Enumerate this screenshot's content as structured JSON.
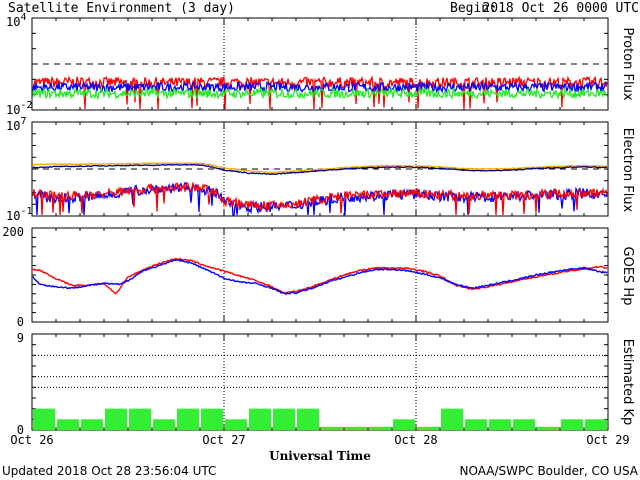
{
  "header": {
    "title": "Satellite Environment (3 day)",
    "begin_label": "Begin:",
    "begin_value": "2018 Oct 26 0000 UTC"
  },
  "footer": {
    "updated": "Updated 2018 Oct 28 23:56:04 UTC",
    "credit": "NOAA/SWPC Boulder, CO USA"
  },
  "colors": {
    "red": "#ff0000",
    "blue": "#0000ff",
    "green": "#22ee22",
    "orange": "#ffa500",
    "navy": "#000080",
    "kp_bar": "#33ee33"
  },
  "chart_data": [
    {
      "type": "line",
      "panel": "proton",
      "ylabel": "Proton Flux",
      "yscale": "log",
      "ylim": [
        0.01,
        10000
      ],
      "yticks": [
        {
          "value": 10000,
          "base": "10",
          "exp": "4"
        },
        {
          "value": 0.01,
          "base": "10",
          "exp": "-2"
        }
      ],
      "threshold": 10,
      "xlim": [
        0,
        72
      ],
      "xticks": [
        0,
        24,
        48,
        72
      ],
      "series": [
        {
          "color": "red",
          "x": [
            0,
            6,
            12,
            18,
            24,
            30,
            36,
            42,
            48,
            54,
            60,
            66,
            72
          ],
          "y": [
            0.6,
            0.65,
            0.6,
            0.6,
            0.65,
            0.6,
            0.62,
            0.6,
            0.62,
            0.6,
            0.65,
            0.6,
            0.62
          ],
          "noise": 0.35
        },
        {
          "color": "blue",
          "x": [
            0,
            12,
            24,
            36,
            48,
            60,
            72
          ],
          "y": [
            0.3,
            0.3,
            0.32,
            0.3,
            0.3,
            0.3,
            0.32
          ],
          "noise": 0.3
        },
        {
          "color": "green",
          "x": [
            0,
            12,
            24,
            36,
            48,
            60,
            72
          ],
          "y": [
            0.12,
            0.12,
            0.12,
            0.12,
            0.12,
            0.12,
            0.12
          ],
          "noise": 0.3
        }
      ]
    },
    {
      "type": "line",
      "panel": "electron",
      "ylabel": "Electron Flux",
      "yscale": "log",
      "ylim": [
        0.1,
        10000000
      ],
      "yticks": [
        {
          "value": 10000000,
          "base": "10",
          "exp": "7"
        },
        {
          "value": 0.1,
          "base": "10",
          "exp": "-1"
        }
      ],
      "threshold": 1000,
      "xlim": [
        0,
        72
      ],
      "xticks": [
        0,
        24,
        48,
        72
      ],
      "series": [
        {
          "color": "orange",
          "x": [
            0,
            3,
            6,
            9,
            12,
            15,
            18,
            21,
            24,
            27,
            30,
            33,
            36,
            39,
            42,
            45,
            48,
            51,
            54,
            57,
            60,
            63,
            66,
            69,
            72
          ],
          "y": [
            2300,
            2600,
            2500,
            2700,
            2800,
            3000,
            3100,
            3100,
            1200,
            700,
            500,
            700,
            900,
            1300,
            1700,
            1900,
            1800,
            1500,
            1100,
            1000,
            1100,
            1400,
            1700,
            1900,
            1600
          ],
          "noise": 0.04
        },
        {
          "color": "navy",
          "x": [
            0,
            3,
            6,
            9,
            12,
            15,
            18,
            21,
            24,
            27,
            30,
            33,
            36,
            39,
            42,
            45,
            48,
            51,
            54,
            57,
            60,
            63,
            66,
            69,
            72
          ],
          "y": [
            1300,
            1600,
            1700,
            1900,
            2000,
            2100,
            2300,
            2200,
            800,
            450,
            350,
            500,
            700,
            1000,
            1300,
            1500,
            1400,
            1100,
            800,
            700,
            800,
            1100,
            1300,
            1500,
            1300
          ],
          "noise": 0.04
        },
        {
          "color": "blue",
          "x": [
            0,
            3,
            6,
            9,
            12,
            15,
            18,
            21,
            24,
            27,
            30,
            33,
            36,
            39,
            42,
            45,
            48,
            51,
            54,
            57,
            60,
            63,
            66,
            69,
            72
          ],
          "y": [
            6,
            3,
            4,
            5,
            12,
            20,
            25,
            22,
            1.5,
            0.6,
            0.6,
            0.8,
            2,
            4,
            5,
            7,
            7,
            5,
            4,
            4,
            5,
            6,
            7,
            8,
            7
          ],
          "noise": 0.45
        },
        {
          "color": "red",
          "x": [
            0,
            3,
            6,
            9,
            12,
            15,
            18,
            21,
            24,
            27,
            30,
            33,
            36,
            39,
            42,
            45,
            48,
            51,
            54,
            57,
            60,
            63,
            66,
            69,
            72
          ],
          "y": [
            8,
            5,
            6,
            7,
            14,
            22,
            28,
            25,
            2,
            0.8,
            0.7,
            1,
            2.5,
            5,
            6,
            8,
            8,
            6,
            5,
            5,
            6,
            7,
            8,
            9,
            8
          ],
          "noise": 0.4
        }
      ]
    },
    {
      "type": "line",
      "panel": "goes_hp",
      "ylabel": "GOES Hp",
      "yscale": "linear",
      "ylim": [
        0,
        200
      ],
      "yticks": [
        {
          "value": 200,
          "label": "200"
        },
        {
          "value": 0,
          "label": "0"
        }
      ],
      "xlim": [
        0,
        72
      ],
      "xticks": [
        0,
        24,
        48,
        72
      ],
      "series": [
        {
          "color": "red",
          "x": [
            0,
            1,
            3,
            5,
            7,
            9,
            10.5,
            12,
            14,
            16,
            18,
            20,
            22,
            24,
            26,
            28,
            30,
            31.5,
            33,
            35,
            37,
            39,
            41,
            43,
            45,
            47,
            49,
            51,
            53,
            55,
            57,
            59,
            61,
            63,
            65,
            67,
            69,
            71,
            72
          ],
          "y": [
            112,
            110,
            92,
            78,
            78,
            82,
            60,
            95,
            112,
            125,
            135,
            130,
            118,
            108,
            98,
            88,
            75,
            62,
            65,
            75,
            88,
            100,
            110,
            115,
            115,
            114,
            108,
            98,
            78,
            70,
            75,
            82,
            90,
            96,
            102,
            108,
            113,
            118,
            115
          ],
          "noise": 1.5
        },
        {
          "color": "blue",
          "x": [
            0,
            1,
            3,
            5,
            7,
            9,
            11,
            12,
            14,
            16,
            18,
            20,
            22,
            24,
            26,
            28,
            30,
            31.5,
            33,
            35,
            37,
            39,
            41,
            43,
            45,
            47,
            49,
            51,
            53,
            55,
            57,
            59,
            61,
            63,
            65,
            67,
            69,
            71,
            72
          ],
          "y": [
            98,
            80,
            75,
            72,
            78,
            82,
            80,
            88,
            110,
            120,
            133,
            125,
            110,
            93,
            85,
            82,
            72,
            60,
            62,
            72,
            85,
            95,
            105,
            112,
            112,
            109,
            102,
            94,
            80,
            72,
            78,
            85,
            92,
            100,
            106,
            112,
            115,
            107,
            104
          ],
          "noise": 1.5
        }
      ]
    },
    {
      "type": "bar",
      "panel": "kp",
      "ylabel": "Estimated Kp",
      "ylim": [
        0,
        9
      ],
      "yticks": [
        {
          "value": 9,
          "label": "9"
        },
        {
          "value": 0,
          "label": "0"
        }
      ],
      "gridlines": [
        4,
        5,
        7,
        9
      ],
      "xlim": [
        0,
        72
      ],
      "xticks": [
        0,
        24,
        48,
        72
      ],
      "bar_width_hours": 3,
      "values": [
        2,
        1,
        1,
        2,
        2,
        1,
        2,
        2,
        1,
        2,
        2,
        2,
        0.3,
        0.3,
        0.3,
        1,
        0.3,
        2,
        1,
        1,
        1,
        0.3,
        1,
        1
      ]
    }
  ],
  "x_axis": {
    "label": "Universal Time",
    "ticks": [
      "Oct 26",
      "Oct 27",
      "Oct 28",
      "Oct 29"
    ]
  }
}
